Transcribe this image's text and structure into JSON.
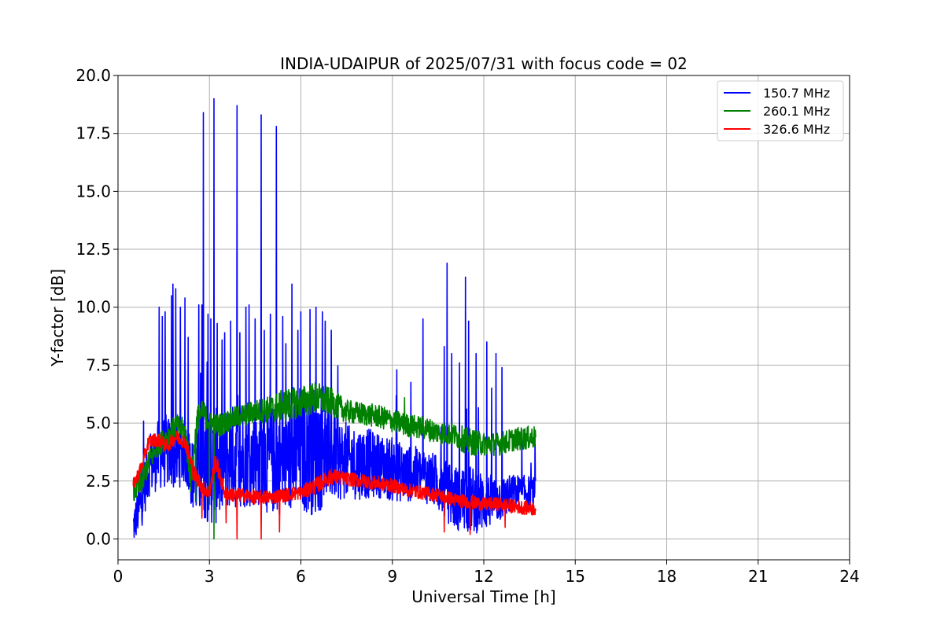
{
  "chart_data": {
    "type": "line",
    "title": "INDIA-UDAIPUR of 2025/07/31 with focus code = 02",
    "xlabel": "Universal Time [h]",
    "ylabel": "Y-factor [dB]",
    "xlim": [
      0,
      24
    ],
    "ylim": [
      -0.9,
      20.0
    ],
    "xticks": [
      0,
      3,
      6,
      9,
      12,
      15,
      18,
      21,
      24
    ],
    "xtick_labels": [
      "0",
      "3",
      "6",
      "9",
      "12",
      "15",
      "18",
      "21",
      "24"
    ],
    "yticks": [
      0,
      2.5,
      5,
      7.5,
      10,
      12.5,
      15,
      17.5,
      20
    ],
    "ytick_labels": [
      "0.0",
      "2.5",
      "5.0",
      "7.5",
      "10.0",
      "12.5",
      "15.0",
      "17.5",
      "20.0"
    ],
    "grid": true,
    "legend_position": "top-right",
    "series": [
      {
        "name": "150.7 MHz",
        "color": "#0000ff",
        "x": [
          0.5,
          0.8,
          1.0,
          1.3,
          1.6,
          1.9,
          2.2,
          2.5,
          2.8,
          3.0,
          3.3,
          3.6,
          4.0,
          4.5,
          5.0,
          5.5,
          6.0,
          6.5,
          7.0,
          7.5,
          8.0,
          8.5,
          9.0,
          9.5,
          10.0,
          10.5,
          11.0,
          11.5,
          12.0,
          12.5,
          13.0,
          13.7
        ],
        "base": [
          0.5,
          1.8,
          3.0,
          3.6,
          3.8,
          3.5,
          3.8,
          2.6,
          3.2,
          2.9,
          3.2,
          3.5,
          3.6,
          3.4,
          3.4,
          3.3,
          3.7,
          3.9,
          3.6,
          3.3,
          3.3,
          3.2,
          3.0,
          2.8,
          2.8,
          2.4,
          1.8,
          1.7,
          1.6,
          1.7,
          2.0,
          2.0
        ],
        "noise": [
          0.8,
          1.2,
          1.2,
          1.5,
          1.6,
          1.4,
          1.4,
          1.6,
          2.4,
          2.3,
          2.6,
          2.3,
          2.3,
          2.0,
          2.4,
          2.3,
          2.6,
          2.9,
          2.0,
          1.6,
          1.6,
          1.4,
          1.4,
          1.2,
          1.2,
          1.2,
          1.4,
          1.5,
          1.3,
          1.0,
          0.8,
          0.7
        ],
        "spikes": [
          [
            1.35,
            10.0
          ],
          [
            1.45,
            9.6
          ],
          [
            1.55,
            9.8
          ],
          [
            1.75,
            10.5
          ],
          [
            1.8,
            11.0
          ],
          [
            1.9,
            10.8
          ],
          [
            2.05,
            10.0
          ],
          [
            2.2,
            10.4
          ],
          [
            2.3,
            8.7
          ],
          [
            2.65,
            10.1
          ],
          [
            2.75,
            10.1
          ],
          [
            2.8,
            18.4
          ],
          [
            2.95,
            9.7
          ],
          [
            3.05,
            9.5
          ],
          [
            3.15,
            19.0
          ],
          [
            3.25,
            9.3
          ],
          [
            3.5,
            8.9
          ],
          [
            3.7,
            9.4
          ],
          [
            3.9,
            18.7
          ],
          [
            4.0,
            8.9
          ],
          [
            4.2,
            10.0
          ],
          [
            4.3,
            10.1
          ],
          [
            4.5,
            9.5
          ],
          [
            4.7,
            18.3
          ],
          [
            4.8,
            9.0
          ],
          [
            5.0,
            9.7
          ],
          [
            5.2,
            17.8
          ],
          [
            5.4,
            9.6
          ],
          [
            5.7,
            11.0
          ],
          [
            5.9,
            9.0
          ],
          [
            6.0,
            9.8
          ],
          [
            6.3,
            9.9
          ],
          [
            6.5,
            10.0
          ],
          [
            6.7,
            9.8
          ],
          [
            6.8,
            9.4
          ],
          [
            7.0,
            9.0
          ],
          [
            9.15,
            7.3
          ],
          [
            10.0,
            9.5
          ],
          [
            10.7,
            8.3
          ],
          [
            10.8,
            11.9
          ],
          [
            10.95,
            8.0
          ],
          [
            11.2,
            7.6
          ],
          [
            11.4,
            11.3
          ],
          [
            11.5,
            9.4
          ],
          [
            11.75,
            8.0
          ],
          [
            12.1,
            8.5
          ],
          [
            12.4,
            8.0
          ],
          [
            12.6,
            7.4
          ]
        ]
      },
      {
        "name": "260.1 MHz",
        "color": "#008000",
        "x": [
          0.5,
          0.8,
          1.0,
          1.3,
          1.6,
          1.9,
          2.2,
          2.4,
          2.6,
          2.8,
          3.0,
          3.3,
          3.6,
          4.0,
          4.5,
          5.0,
          5.5,
          6.0,
          6.5,
          7.0,
          7.5,
          8.0,
          8.5,
          9.0,
          9.5,
          10.0,
          10.5,
          11.0,
          11.5,
          12.0,
          12.5,
          13.0,
          13.7
        ],
        "base": [
          2.0,
          2.5,
          3.3,
          4.0,
          4.4,
          4.9,
          4.6,
          2.6,
          5.2,
          5.5,
          5.0,
          4.9,
          5.1,
          5.3,
          5.5,
          5.6,
          5.8,
          5.9,
          6.1,
          5.9,
          5.5,
          5.4,
          5.3,
          5.1,
          4.9,
          4.8,
          4.6,
          4.5,
          4.2,
          4.1,
          4.1,
          4.3,
          4.4
        ],
        "noise": [
          0.5,
          0.6,
          0.5,
          0.5,
          0.5,
          0.5,
          0.6,
          0.8,
          0.6,
          0.5,
          0.5,
          0.5,
          0.5,
          0.5,
          0.5,
          0.6,
          0.7,
          0.7,
          0.7,
          0.6,
          0.5,
          0.5,
          0.5,
          0.5,
          0.5,
          0.5,
          0.5,
          0.5,
          0.6,
          0.5,
          0.5,
          0.5,
          0.5
        ],
        "spikes": [
          [
            3.15,
            0.0
          ],
          [
            2.55,
            1.6
          ],
          [
            9.4,
            6.1
          ],
          [
            3.0,
            1.5
          ]
        ]
      },
      {
        "name": "326.6 MHz",
        "color": "#ff0000",
        "x": [
          0.5,
          0.8,
          1.0,
          1.3,
          1.6,
          1.9,
          2.2,
          2.5,
          2.8,
          3.0,
          3.2,
          3.5,
          3.8,
          4.0,
          4.5,
          5.0,
          5.5,
          6.0,
          6.5,
          7.0,
          7.5,
          8.0,
          8.5,
          9.0,
          9.5,
          10.0,
          10.5,
          11.0,
          11.5,
          12.0,
          12.5,
          13.0,
          13.7
        ],
        "base": [
          2.3,
          3.2,
          4.2,
          4.3,
          4.0,
          4.4,
          4.2,
          2.8,
          2.2,
          2.0,
          3.4,
          2.0,
          1.9,
          1.9,
          1.8,
          1.8,
          1.9,
          2.0,
          2.3,
          2.7,
          2.6,
          2.5,
          2.4,
          2.3,
          2.1,
          2.0,
          1.9,
          1.7,
          1.6,
          1.5,
          1.5,
          1.4,
          1.3
        ],
        "noise": [
          0.3,
          0.3,
          0.3,
          0.3,
          0.3,
          0.3,
          0.3,
          0.4,
          0.3,
          0.3,
          0.4,
          0.3,
          0.3,
          0.3,
          0.3,
          0.3,
          0.3,
          0.3,
          0.35,
          0.35,
          0.3,
          0.3,
          0.3,
          0.3,
          0.3,
          0.3,
          0.3,
          0.3,
          0.3,
          0.3,
          0.3,
          0.3,
          0.3
        ],
        "spikes": [
          [
            3.9,
            0.0
          ],
          [
            4.7,
            0.0
          ],
          [
            3.55,
            0.7
          ],
          [
            5.3,
            0.3
          ],
          [
            10.7,
            0.3
          ],
          [
            11.55,
            0.2
          ],
          [
            12.7,
            0.5
          ],
          [
            2.75,
            0.9
          ]
        ]
      }
    ]
  }
}
